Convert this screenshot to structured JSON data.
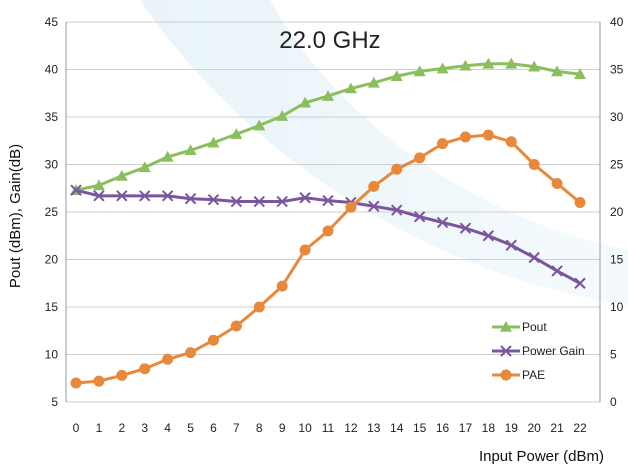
{
  "chart_data": {
    "type": "line",
    "title": "22.0 GHz",
    "xlabel": "Input Power (dBm)",
    "ylabel": "Pout (dBm), Gain(dB)",
    "y2label": "",
    "x": [
      0,
      1,
      2,
      3,
      4,
      5,
      6,
      7,
      8,
      9,
      10,
      11,
      12,
      13,
      14,
      15,
      16,
      17,
      18,
      19,
      20,
      21,
      22
    ],
    "xlim": [
      0,
      22
    ],
    "ylim": [
      5,
      45
    ],
    "y2lim": [
      0,
      40
    ],
    "yticks": [
      5,
      10,
      15,
      20,
      25,
      30,
      35,
      40,
      45
    ],
    "y2ticks": [
      0,
      5,
      10,
      15,
      20,
      25,
      30,
      35,
      40
    ],
    "grid": true,
    "legend": "bottom-right",
    "series": [
      {
        "name": "Pout",
        "axis": "left",
        "marker": "triangle",
        "color": "#8bbf5e",
        "values": [
          27.3,
          27.8,
          28.8,
          29.7,
          30.8,
          31.5,
          32.3,
          33.2,
          34.1,
          35.1,
          36.5,
          37.2,
          38.0,
          38.6,
          39.3,
          39.8,
          40.1,
          40.4,
          40.6,
          40.6,
          40.3,
          39.8,
          39.5
        ]
      },
      {
        "name": "Power Gain",
        "axis": "left",
        "marker": "x",
        "color": "#7b559e",
        "values": [
          27.3,
          26.7,
          26.7,
          26.7,
          26.7,
          26.4,
          26.3,
          26.1,
          26.1,
          26.1,
          26.5,
          26.2,
          26.0,
          25.6,
          25.2,
          24.5,
          23.9,
          23.3,
          22.5,
          21.5,
          20.2,
          18.8,
          17.5
        ]
      },
      {
        "name": "PAE",
        "axis": "right",
        "marker": "circle",
        "color": "#e8883a",
        "values": [
          2.0,
          2.2,
          2.8,
          3.5,
          4.5,
          5.2,
          6.5,
          8.0,
          10.0,
          12.2,
          16.0,
          18.0,
          20.5,
          22.7,
          24.5,
          25.7,
          27.2,
          27.9,
          28.1,
          27.4,
          25.0,
          23.0,
          21.0
        ]
      }
    ]
  }
}
